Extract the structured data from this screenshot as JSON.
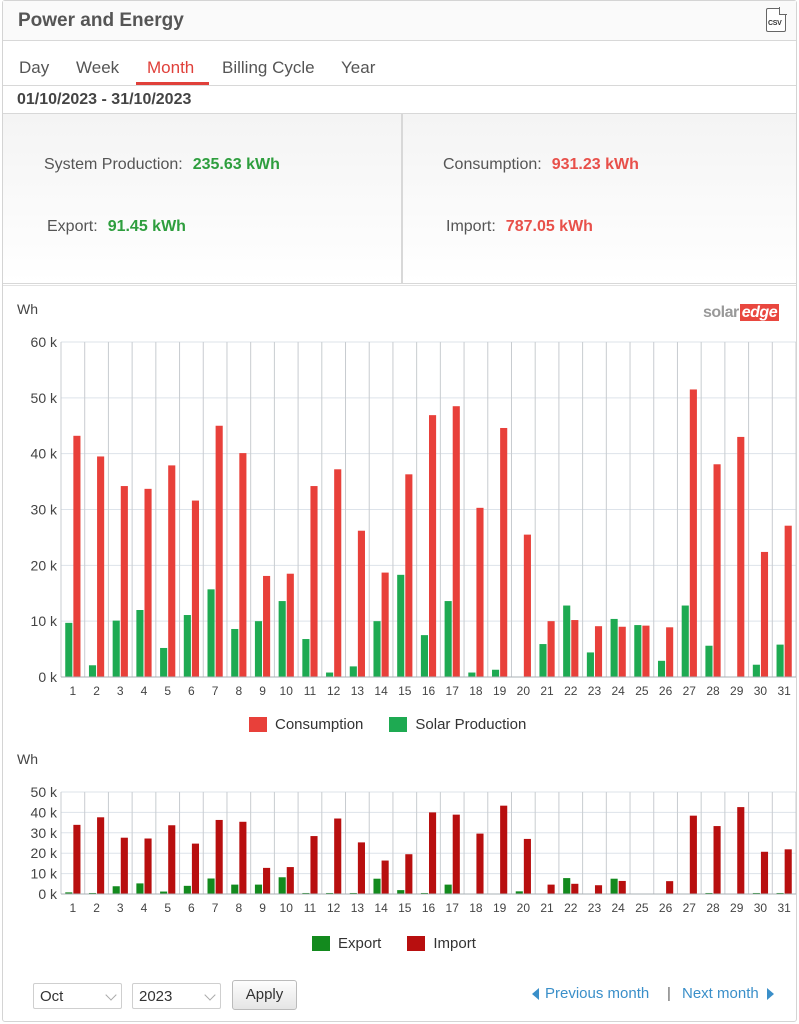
{
  "header": {
    "title": "Power and Energy",
    "csv_icon_label": "CSV"
  },
  "tabs": [
    {
      "label": "Day",
      "active": false
    },
    {
      "label": "Week",
      "active": false
    },
    {
      "label": "Month",
      "active": true
    },
    {
      "label": "Billing Cycle",
      "active": false
    },
    {
      "label": "Year",
      "active": false
    }
  ],
  "date_range": "01/10/2023 - 31/10/2023",
  "summary": {
    "production_label": "System Production:",
    "production_value": "235.63 kWh",
    "export_label": "Export:",
    "export_value": "91.45 kWh",
    "consumption_label": "Consumption:",
    "consumption_value": "931.23 kWh",
    "import_label": "Import:",
    "import_value": "787.05 kWh"
  },
  "colors": {
    "accent": "#e0403a",
    "consumption": "#e8403a",
    "solar_production": "#1eaa52",
    "export": "#138a1e",
    "import": "#b80f0f",
    "link": "#3a8fc9"
  },
  "logo": {
    "solar": "solar",
    "edge": "edge"
  },
  "chart_data": [
    {
      "type": "bar",
      "ylabel": "Wh",
      "ylim": [
        0,
        60000
      ],
      "y_ticks": [
        "0 k",
        "10 k",
        "20 k",
        "30 k",
        "40 k",
        "50 k",
        "60 k"
      ],
      "categories": [
        "1",
        "2",
        "3",
        "4",
        "5",
        "6",
        "7",
        "8",
        "9",
        "10",
        "11",
        "12",
        "13",
        "14",
        "15",
        "16",
        "17",
        "18",
        "19",
        "20",
        "21",
        "22",
        "23",
        "24",
        "25",
        "26",
        "27",
        "28",
        "29",
        "30",
        "31"
      ],
      "series": [
        {
          "name": "Consumption",
          "values": [
            43200,
            39500,
            34200,
            33700,
            37900,
            31600,
            45000,
            40100,
            18100,
            18500,
            34200,
            37200,
            26200,
            18700,
            36300,
            46900,
            48500,
            30300,
            44600,
            25500,
            10000,
            10200,
            9100,
            9000,
            9200,
            8900,
            51500,
            38100,
            43000,
            22400,
            27100
          ]
        },
        {
          "name": "Solar Production",
          "values": [
            9700,
            2100,
            10100,
            12000,
            5200,
            11100,
            15700,
            8600,
            10000,
            13600,
            6800,
            800,
            1900,
            10000,
            18300,
            7500,
            13600,
            800,
            1300,
            0,
            5900,
            12800,
            4400,
            10400,
            9300,
            2900,
            12800,
            5600,
            0,
            2200,
            5800
          ]
        }
      ],
      "legend": "bottom-center"
    },
    {
      "type": "bar",
      "ylabel": "Wh",
      "ylim": [
        0,
        50000
      ],
      "y_ticks": [
        "0 k",
        "10 k",
        "20 k",
        "30 k",
        "40 k",
        "50 k"
      ],
      "categories": [
        "1",
        "2",
        "3",
        "4",
        "5",
        "6",
        "7",
        "8",
        "9",
        "10",
        "11",
        "12",
        "13",
        "14",
        "15",
        "16",
        "17",
        "18",
        "19",
        "20",
        "21",
        "22",
        "23",
        "24",
        "25",
        "26",
        "27",
        "28",
        "29",
        "30",
        "31"
      ],
      "series": [
        {
          "name": "Export",
          "values": [
            800,
            500,
            3800,
            5200,
            1200,
            4000,
            7600,
            4600,
            4600,
            8200,
            500,
            500,
            500,
            7500,
            1900,
            500,
            4600,
            0,
            0,
            1300,
            0,
            7800,
            0,
            7500,
            0,
            0,
            0,
            500,
            0,
            500,
            500
          ]
        },
        {
          "name": "Import",
          "values": [
            33900,
            37600,
            27600,
            27200,
            33700,
            24700,
            36300,
            35400,
            12800,
            13200,
            28400,
            37000,
            25300,
            16400,
            19500,
            40000,
            38900,
            29600,
            43300,
            27000,
            4600,
            5000,
            4300,
            6400,
            0,
            6300,
            38400,
            33300,
            42600,
            20700,
            21900
          ]
        }
      ],
      "legend": "bottom-center"
    }
  ],
  "footer": {
    "month_select": "Oct",
    "year_select": "2023",
    "apply_label": "Apply",
    "prev_label": "Previous month",
    "separator": "|",
    "next_label": "Next month"
  }
}
